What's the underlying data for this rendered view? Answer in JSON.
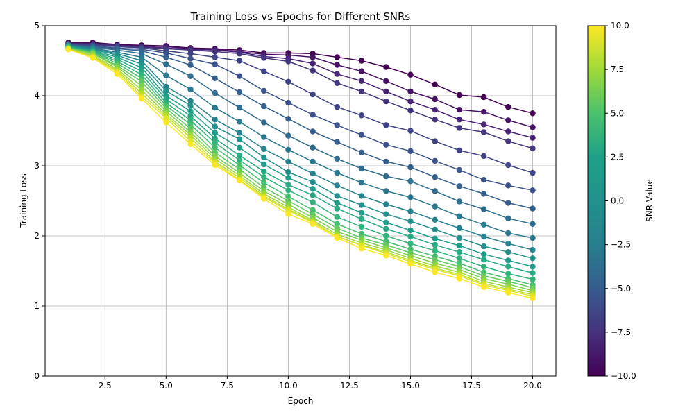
{
  "chart_data": {
    "type": "line",
    "title": "Training Loss vs Epochs for Different SNRs",
    "xlabel": "Epoch",
    "ylabel": "Training Loss",
    "xlim": [
      0.05,
      20.95
    ],
    "ylim": [
      0,
      5
    ],
    "x_ticks": [
      2.5,
      5.0,
      7.5,
      10.0,
      12.5,
      15.0,
      17.5,
      20.0
    ],
    "x_tick_labels": [
      "2.5",
      "5.0",
      "7.5",
      "10.0",
      "12.5",
      "15.0",
      "17.5",
      "20.0"
    ],
    "y_ticks": [
      0,
      1,
      2,
      3,
      4,
      5
    ],
    "y_tick_labels": [
      "0",
      "1",
      "2",
      "3",
      "4",
      "5"
    ],
    "grid": true,
    "legend": "none",
    "colorbar": {
      "label": "SNR Value",
      "colormap": "viridis",
      "range": [
        -10,
        10
      ],
      "ticks": [
        10,
        7.5,
        5,
        2.5,
        0,
        -2.5,
        -5,
        -7.5,
        -10
      ],
      "tick_labels": [
        "10.0",
        "7.5",
        "5.0",
        "2.5",
        "0.0",
        "−2.5",
        "−5.0",
        "−7.5",
        "−10.0"
      ]
    },
    "x": [
      1,
      2,
      3,
      4,
      5,
      6,
      7,
      8,
      9,
      10,
      11,
      12,
      13,
      14,
      15,
      16,
      17,
      18,
      19,
      20
    ],
    "series": [
      {
        "snr": -10,
        "values": [
          4.76,
          4.76,
          4.73,
          4.72,
          4.71,
          4.68,
          4.67,
          4.65,
          4.61,
          4.61,
          4.6,
          4.55,
          4.5,
          4.41,
          4.3,
          4.16,
          4.01,
          3.98,
          3.84,
          3.75
        ]
      },
      {
        "snr": -9,
        "values": [
          4.75,
          4.75,
          4.72,
          4.71,
          4.7,
          4.67,
          4.66,
          4.63,
          4.59,
          4.58,
          4.55,
          4.44,
          4.35,
          4.21,
          4.06,
          3.95,
          3.8,
          3.77,
          3.65,
          3.55
        ]
      },
      {
        "snr": -8,
        "values": [
          4.75,
          4.74,
          4.72,
          4.7,
          4.68,
          4.66,
          4.65,
          4.62,
          4.56,
          4.53,
          4.46,
          4.31,
          4.21,
          4.06,
          3.92,
          3.8,
          3.66,
          3.59,
          3.49,
          3.4
        ]
      },
      {
        "snr": -7,
        "values": [
          4.74,
          4.73,
          4.71,
          4.69,
          4.67,
          4.65,
          4.63,
          4.6,
          4.54,
          4.49,
          4.36,
          4.18,
          4.06,
          3.92,
          3.79,
          3.66,
          3.54,
          3.48,
          3.35,
          3.25
        ]
      },
      {
        "snr": -6,
        "values": [
          4.74,
          4.72,
          4.7,
          4.68,
          4.64,
          4.6,
          4.55,
          4.5,
          4.35,
          4.2,
          4.02,
          3.84,
          3.72,
          3.58,
          3.5,
          3.35,
          3.22,
          3.14,
          3.01,
          2.9
        ]
      },
      {
        "snr": -5,
        "values": [
          4.73,
          4.71,
          4.68,
          4.66,
          4.61,
          4.53,
          4.45,
          4.28,
          4.07,
          3.9,
          3.73,
          3.58,
          3.44,
          3.3,
          3.21,
          3.07,
          2.94,
          2.8,
          2.72,
          2.65
        ]
      },
      {
        "snr": -4,
        "values": [
          4.73,
          4.7,
          4.67,
          4.64,
          4.55,
          4.44,
          4.25,
          4.05,
          3.85,
          3.67,
          3.49,
          3.34,
          3.19,
          3.06,
          2.98,
          2.84,
          2.71,
          2.6,
          2.47,
          2.39
        ]
      },
      {
        "snr": -3,
        "values": [
          4.72,
          4.69,
          4.65,
          4.6,
          4.45,
          4.28,
          4.04,
          3.83,
          3.62,
          3.43,
          3.26,
          3.1,
          2.96,
          2.85,
          2.78,
          2.64,
          2.49,
          2.38,
          2.25,
          2.17
        ]
      },
      {
        "snr": -2,
        "values": [
          4.72,
          4.68,
          4.62,
          4.55,
          4.29,
          4.09,
          3.83,
          3.63,
          3.41,
          3.23,
          3.06,
          2.9,
          2.76,
          2.64,
          2.55,
          2.42,
          2.28,
          2.16,
          2.04,
          1.97
        ]
      },
      {
        "snr": -1,
        "values": [
          4.71,
          4.67,
          4.6,
          4.5,
          4.13,
          3.93,
          3.66,
          3.47,
          3.24,
          3.06,
          2.89,
          2.72,
          2.57,
          2.45,
          2.35,
          2.23,
          2.11,
          1.99,
          1.89,
          1.8
        ]
      },
      {
        "snr": 0,
        "values": [
          4.71,
          4.66,
          4.58,
          4.45,
          4.07,
          3.86,
          3.56,
          3.38,
          3.12,
          2.91,
          2.77,
          2.57,
          2.44,
          2.31,
          2.21,
          2.09,
          1.97,
          1.85,
          1.77,
          1.68
        ]
      },
      {
        "snr": 1,
        "values": [
          4.7,
          4.65,
          4.55,
          4.4,
          4.0,
          3.78,
          3.47,
          3.26,
          3.02,
          2.83,
          2.67,
          2.47,
          2.33,
          2.19,
          2.08,
          1.96,
          1.86,
          1.74,
          1.65,
          1.56
        ]
      },
      {
        "snr": 2,
        "values": [
          4.7,
          4.64,
          4.52,
          4.35,
          3.95,
          3.71,
          3.39,
          3.15,
          2.92,
          2.73,
          2.58,
          2.39,
          2.24,
          2.1,
          1.99,
          1.87,
          1.77,
          1.66,
          1.56,
          1.47
        ]
      },
      {
        "snr": 3,
        "values": [
          4.69,
          4.63,
          4.49,
          4.3,
          3.9,
          3.65,
          3.33,
          3.08,
          2.84,
          2.65,
          2.48,
          2.27,
          2.13,
          2.0,
          1.89,
          1.79,
          1.68,
          1.56,
          1.46,
          1.38
        ]
      },
      {
        "snr": 4,
        "values": [
          4.69,
          4.62,
          4.46,
          4.25,
          3.86,
          3.59,
          3.26,
          3.01,
          2.76,
          2.56,
          2.37,
          2.17,
          2.03,
          1.92,
          1.81,
          1.71,
          1.61,
          1.48,
          1.39,
          1.3
        ]
      },
      {
        "snr": 5,
        "values": [
          4.68,
          4.61,
          4.43,
          4.2,
          3.82,
          3.53,
          3.19,
          2.95,
          2.69,
          2.5,
          2.31,
          2.11,
          1.97,
          1.87,
          1.76,
          1.66,
          1.56,
          1.43,
          1.35,
          1.26
        ]
      },
      {
        "snr": 6,
        "values": [
          4.68,
          4.6,
          4.41,
          4.14,
          3.78,
          3.48,
          3.14,
          2.9,
          2.64,
          2.45,
          2.26,
          2.06,
          1.94,
          1.83,
          1.72,
          1.61,
          1.52,
          1.39,
          1.31,
          1.22
        ]
      },
      {
        "snr": 7,
        "values": [
          4.67,
          4.58,
          4.38,
          4.08,
          3.74,
          3.44,
          3.1,
          2.86,
          2.6,
          2.41,
          2.22,
          2.02,
          1.9,
          1.8,
          1.68,
          1.57,
          1.48,
          1.35,
          1.27,
          1.19
        ]
      },
      {
        "snr": 8,
        "values": [
          4.67,
          4.56,
          4.36,
          4.03,
          3.71,
          3.4,
          3.06,
          2.83,
          2.57,
          2.38,
          2.2,
          1.99,
          1.87,
          1.77,
          1.65,
          1.54,
          1.45,
          1.32,
          1.24,
          1.16
        ]
      },
      {
        "snr": 9,
        "values": [
          4.66,
          4.55,
          4.34,
          3.99,
          3.68,
          3.35,
          3.04,
          2.8,
          2.55,
          2.36,
          2.19,
          1.99,
          1.86,
          1.75,
          1.63,
          1.52,
          1.43,
          1.3,
          1.22,
          1.14
        ]
      },
      {
        "snr": 10,
        "values": [
          4.66,
          4.54,
          4.31,
          3.96,
          3.62,
          3.31,
          3.01,
          2.79,
          2.53,
          2.31,
          2.17,
          1.97,
          1.82,
          1.72,
          1.6,
          1.48,
          1.39,
          1.27,
          1.19,
          1.11
        ]
      }
    ]
  }
}
